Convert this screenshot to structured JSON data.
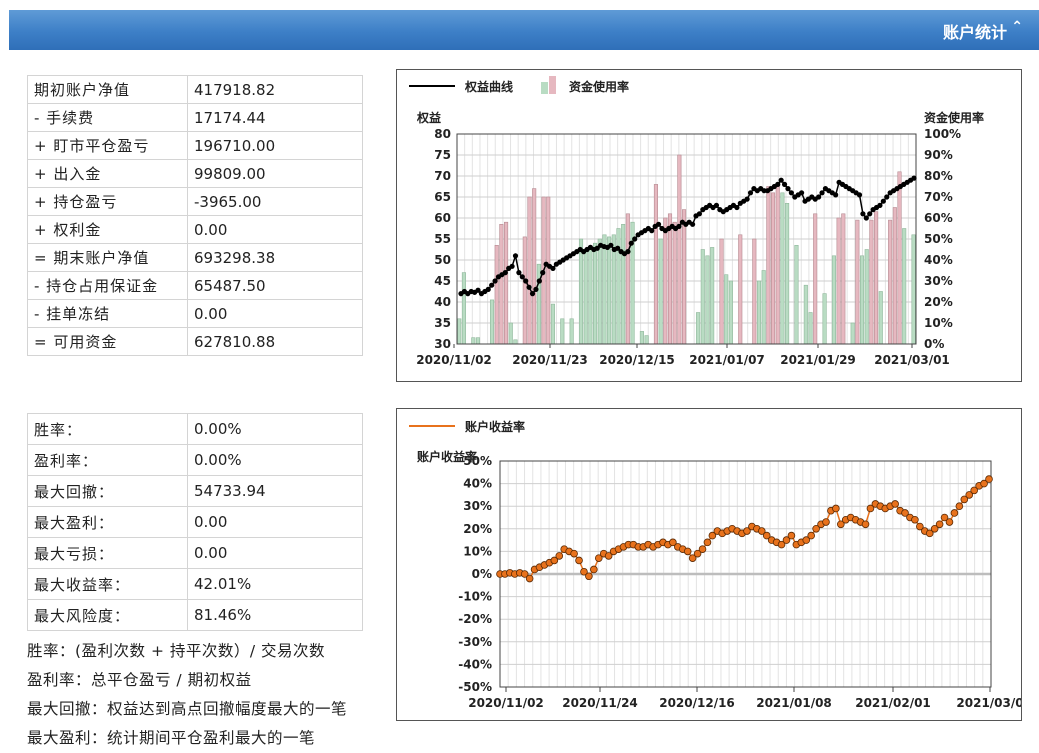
{
  "header": {
    "title": "账户统计",
    "toggle_icon": "chevron-up-double-icon"
  },
  "account_table": [
    {
      "label": "期初账户净值",
      "value": "417918.82"
    },
    {
      "label": "- 手续费",
      "value": "17174.44"
    },
    {
      "label": "+ 盯市平仓盈亏",
      "value": "196710.00"
    },
    {
      "label": "+ 出入金",
      "value": "99809.00"
    },
    {
      "label": "+ 持仓盈亏",
      "value": "-3965.00"
    },
    {
      "label": "+ 权利金",
      "value": "0.00"
    },
    {
      "label": "= 期末账户净值",
      "value": "693298.38"
    },
    {
      "label": "- 持仓占用保证金",
      "value": "65487.50"
    },
    {
      "label": "- 挂单冻结",
      "value": "0.00"
    },
    {
      "label": "= 可用资金",
      "value": "627810.88"
    }
  ],
  "perf_table": [
    {
      "label": "胜率：",
      "value": "0.00%"
    },
    {
      "label": "盈利率：",
      "value": "0.00%"
    },
    {
      "label": "最大回撤：",
      "value": "54733.94"
    },
    {
      "label": "最大盈利：",
      "value": "0.00"
    },
    {
      "label": "最大亏损：",
      "value": "0.00"
    },
    {
      "label": "最大收益率：",
      "value": "42.01%"
    },
    {
      "label": "最大风险度：",
      "value": "81.46%"
    }
  ],
  "notes": [
    "胜率：(盈利次数 + 持平次数）/ 交易次数",
    "盈利率：总平仓盈亏 / 期初权益",
    "最大回撤：权益达到高点回撤幅度最大的一笔",
    "最大盈利：统计期间平仓盈利最大的一笔"
  ],
  "chart_data": [
    {
      "type": "line+bar",
      "legend": [
        "权益曲线",
        "资金使用率"
      ],
      "ylabel_left": "权益",
      "ylabel_right": "资金使用率",
      "ylim_left": [
        30,
        80
      ],
      "yticks_left": [
        30,
        35,
        40,
        45,
        50,
        55,
        60,
        65,
        70,
        75,
        80
      ],
      "ylim_right": [
        0,
        100
      ],
      "yticks_right": [
        "0%",
        "10%",
        "20%",
        "30%",
        "40%",
        "50%",
        "60%",
        "70%",
        "80%",
        "90%",
        "100%"
      ],
      "xticks": [
        "2020/11/02",
        "2020/11/23",
        "2020/12/15",
        "2021/01/07",
        "2021/01/29",
        "2021/03/01"
      ],
      "colors": {
        "line": "#000000",
        "bar_up": "#e6b8c0",
        "bar_down": "#b9dcc3"
      },
      "equity": [
        42,
        42.5,
        42,
        42.5,
        42.3,
        42.8,
        42,
        42.5,
        43,
        44,
        45,
        46,
        46.5,
        47,
        48,
        48.5,
        51,
        47,
        46,
        45,
        43.5,
        42,
        43,
        45,
        47,
        49,
        48.5,
        48,
        49,
        49.5,
        50,
        50.5,
        51,
        51.5,
        52,
        52.5,
        52,
        52.5,
        53,
        52.5,
        52.8,
        53.5,
        53.2,
        53,
        53.5,
        52.5,
        52.8,
        52,
        51.5,
        52,
        54,
        55,
        56,
        56.5,
        57,
        57.5,
        57,
        58,
        58.5,
        57.5,
        57,
        57.5,
        58,
        57.5,
        58,
        59,
        58.5,
        59,
        58.5,
        60.5,
        61,
        62,
        62.5,
        63,
        62.5,
        63,
        62,
        61.5,
        62,
        62.5,
        63,
        62.5,
        63.5,
        64,
        64.5,
        66,
        67,
        66.5,
        67,
        66.5,
        66.5,
        67,
        67.5,
        68,
        69,
        68,
        67,
        66,
        65,
        65.5,
        66,
        64,
        64.5,
        65,
        64.5,
        65,
        66,
        67,
        66.5,
        66,
        65.5,
        68.5,
        68,
        67.5,
        67,
        66.5,
        66,
        65.5,
        61,
        60,
        61,
        62,
        62.5,
        63,
        64,
        65,
        66,
        66.5,
        67,
        67.5,
        68,
        68.5,
        69,
        69.5
      ],
      "usage_pct": [
        12,
        34,
        0,
        3,
        3,
        0,
        0,
        21,
        47,
        57,
        58,
        10,
        2,
        0,
        51,
        70,
        74,
        38,
        70,
        70,
        19,
        0,
        12,
        0,
        12,
        0,
        50,
        45,
        45,
        48,
        50,
        52,
        51,
        52,
        55,
        57,
        62,
        58,
        0,
        6,
        4,
        0,
        76,
        50,
        60,
        62,
        58,
        90,
        64,
        0,
        0,
        15,
        45,
        42,
        46,
        0,
        50,
        33,
        30,
        0,
        52,
        0,
        0,
        50,
        30,
        35,
        75,
        72,
        76,
        72,
        67,
        0,
        47,
        0,
        28,
        15,
        62,
        0,
        24,
        0,
        42,
        60,
        62,
        0,
        10,
        59,
        42,
        45,
        59,
        63,
        25,
        0,
        59,
        65,
        82,
        55,
        0,
        52
      ],
      "usage_is_up": [
        false,
        false,
        false,
        false,
        false,
        false,
        false,
        false,
        true,
        true,
        true,
        false,
        false,
        false,
        true,
        true,
        true,
        false,
        true,
        true,
        false,
        false,
        false,
        false,
        false,
        false,
        false,
        false,
        false,
        false,
        false,
        false,
        false,
        false,
        false,
        false,
        true,
        false,
        false,
        false,
        false,
        false,
        true,
        false,
        true,
        true,
        true,
        true,
        true,
        false,
        false,
        false,
        false,
        false,
        false,
        false,
        true,
        false,
        false,
        false,
        true,
        false,
        false,
        true,
        false,
        false,
        true,
        true,
        true,
        false,
        false,
        false,
        false,
        false,
        false,
        false,
        true,
        false,
        false,
        false,
        false,
        true,
        true,
        false,
        false,
        true,
        false,
        false,
        true,
        true,
        false,
        false,
        true,
        true,
        true,
        false,
        false,
        false
      ]
    },
    {
      "type": "line",
      "legend": [
        "账户收益率"
      ],
      "ylabel": "账户收益率",
      "ylim": [
        -50,
        50
      ],
      "yticks": [
        "50%",
        "40%",
        "30%",
        "20%",
        "10%",
        "0%",
        "-10%",
        "-20%",
        "-30%",
        "-40%",
        "-50%"
      ],
      "xticks": [
        "2020/11/02",
        "2020/11/24",
        "2020/12/16",
        "2021/01/08",
        "2021/02/01",
        "2021/03/0"
      ],
      "colors": {
        "line": "#e8721c",
        "marker": "#e8721c"
      },
      "returns_pct": [
        0,
        0,
        0.5,
        0,
        0.5,
        0,
        -2,
        2,
        3,
        4,
        5,
        6,
        8,
        11,
        10,
        9,
        6,
        1,
        -1,
        2,
        7,
        9,
        8,
        10,
        11,
        12,
        13,
        13,
        12,
        12,
        13,
        12,
        13,
        14,
        13,
        14,
        12,
        11,
        10,
        7,
        9,
        11,
        14,
        17,
        19,
        18,
        19,
        20,
        19,
        18,
        19,
        21,
        20,
        19,
        17,
        15,
        14,
        13,
        15,
        17,
        13,
        14,
        15,
        17,
        20,
        22,
        23,
        28,
        29,
        22,
        24,
        25,
        24,
        23,
        22,
        29,
        31,
        30,
        29,
        30,
        31,
        28,
        27,
        25,
        24,
        21,
        19,
        18,
        20,
        22,
        25,
        23,
        27,
        30,
        33,
        35,
        37,
        39,
        40,
        42
      ]
    }
  ]
}
